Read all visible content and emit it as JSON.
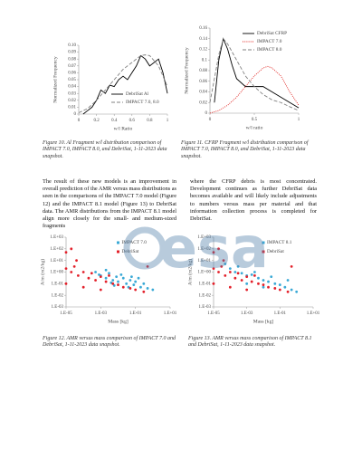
{
  "chart_data": [
    {
      "type": "line",
      "xlabel": "w/l Ratio",
      "ylabel": "Normalized Frequency",
      "caption": "Figure 10. Al Fragment w/l distribution comparison of IMPACT 7.0, IMPACT 8.0, and DebriSat, 1-11-2023 data snapshot.",
      "xlim": [
        0,
        1
      ],
      "xticks": [
        0,
        0.2,
        0.4,
        0.6,
        0.8,
        1
      ],
      "ylim": [
        0,
        0.1
      ],
      "yticks": [
        0,
        0.01,
        0.02,
        0.03,
        0.04,
        0.05,
        0.06,
        0.07,
        0.08,
        0.09,
        {
          "value": 0.1,
          "label": "0.10"
        }
      ],
      "legend": "lower right",
      "series": [
        {
          "name": "DebriSat Al",
          "color": "#000000",
          "dash": "solid",
          "x": [
            0.05,
            0.1,
            0.15,
            0.2,
            0.25,
            0.3,
            0.35,
            0.4,
            0.45,
            0.5,
            0.55,
            0.6,
            0.65,
            0.7,
            0.75,
            0.8,
            0.85,
            0.9,
            0.95,
            1
          ],
          "values": [
            0,
            0.005,
            0.01,
            0.02,
            0.035,
            0.03,
            0.042,
            0.04,
            0.05,
            0.055,
            0.05,
            0.06,
            0.07,
            0.085,
            0.08,
            0.07,
            0.075,
            0.08,
            0.06,
            0.03
          ]
        },
        {
          "name": "IMPACT 7.0, 8.0",
          "color": "#808080",
          "dash": "dashed",
          "x": [
            0,
            0.1,
            0.2,
            0.3,
            0.4,
            0.5,
            0.6,
            0.7,
            0.75,
            0.8,
            0.9,
            1
          ],
          "values": [
            0.002,
            0.008,
            0.02,
            0.035,
            0.05,
            0.065,
            0.075,
            0.085,
            0.086,
            0.085,
            0.07,
            0.04
          ]
        }
      ]
    },
    {
      "type": "line",
      "xlabel": "w/l ratio",
      "ylabel": "Normalized Frequency",
      "caption": "Figure 11. CFRP Fragment w/l distribution comparison of IMPACT 7.0, IMPACT 8.0, and DebriSat, 1-11-2023 data snapshot.",
      "xlim": [
        0,
        1
      ],
      "xticks": [
        0,
        0.5,
        1
      ],
      "ylim": [
        0,
        0.16
      ],
      "yticks": [
        0,
        0.02,
        0.04,
        0.06,
        0.08,
        0.1,
        0.12,
        0.14,
        0.16
      ],
      "legend": "upper right",
      "series": [
        {
          "name": "DebriSat CFRP",
          "color": "#000000",
          "dash": "solid",
          "x": [
            0.05,
            0.1,
            0.15,
            0.2,
            0.25,
            0.3,
            0.4,
            0.5,
            0.6,
            0.7,
            0.8,
            0.9,
            1
          ],
          "values": [
            0.02,
            0.1,
            0.14,
            0.12,
            0.09,
            0.065,
            0.05,
            0.05,
            0.05,
            0.04,
            0.03,
            0.02,
            0.01
          ]
        },
        {
          "name": "IMPACT 7.0",
          "color": "#e0201c",
          "dash": "dotted",
          "x": [
            0,
            0.1,
            0.2,
            0.3,
            0.4,
            0.5,
            0.6,
            0.65,
            0.7,
            0.8,
            0.9,
            1
          ],
          "values": [
            0,
            0.005,
            0.015,
            0.03,
            0.05,
            0.07,
            0.085,
            0.088,
            0.085,
            0.07,
            0.04,
            0.015
          ]
        },
        {
          "name": "IMPACT 8.0",
          "color": "#808080",
          "dash": "dashed",
          "x": [
            0,
            0.1,
            0.15,
            0.2,
            0.3,
            0.4,
            0.5,
            0.6,
            0.7,
            0.8,
            0.9,
            1
          ],
          "values": [
            0.02,
            0.11,
            0.14,
            0.13,
            0.1,
            0.07,
            0.05,
            0.035,
            0.025,
            0.02,
            0.012,
            0.005
          ]
        }
      ]
    },
    {
      "type": "scatter",
      "xlabel": "Mass [kg]",
      "ylabel": "A/m (m2/kg)",
      "caption": "Figure 12. AMR versus mass comparison of IMPACT 7.0 and DebriSat, 1-11-2023 data snapshot.",
      "xscale": "log",
      "yscale": "log",
      "xlim": [
        1e-05,
        10
      ],
      "xticks": [
        {
          "value": 1e-05,
          "label": "1.E-05"
        },
        {
          "value": 0.001,
          "label": "1.E-03"
        },
        {
          "value": 0.1,
          "label": "1.E-01"
        },
        {
          "value": 10,
          "label": "1.E+01"
        }
      ],
      "ylim": [
        0.001,
        1000
      ],
      "yticks": [
        {
          "value": 0.001,
          "label": "1.E-03"
        },
        {
          "value": 0.01,
          "label": "1.E-02"
        },
        {
          "value": 0.1,
          "label": "1.E-01"
        },
        {
          "value": 1,
          "label": "1.E+00"
        },
        {
          "value": 10,
          "label": "1.E+01"
        },
        {
          "value": 100,
          "label": "1.E+02"
        },
        {
          "value": 1000,
          "label": "1.E+03"
        }
      ],
      "legend": "upper right",
      "series": [
        {
          "name": "IMPACT 7.0",
          "color": "#3aa9d6",
          "x": [
            0.001,
            0.002,
            0.003,
            0.005,
            0.008,
            0.01,
            0.02,
            0.03,
            0.05,
            0.08,
            0.1,
            0.2,
            0.3,
            0.5,
            0.0005,
            0.0008,
            0.004,
            0.015,
            0.04,
            0.15,
            1,
            0.002,
            0.006,
            0.06
          ],
          "values": [
            0.5,
            0.3,
            0.8,
            0.2,
            0.4,
            0.15,
            0.3,
            0.1,
            0.2,
            0.08,
            0.15,
            0.05,
            0.1,
            0.04,
            1,
            0.6,
            0.12,
            0.6,
            0.05,
            0.3,
            0.03,
            1.5,
            0.07,
            0.4
          ]
        },
        {
          "name": "DebriSat",
          "color": "#e3202a",
          "x": [
            1e-05,
            2e-05,
            3e-05,
            5e-05,
            0.0001,
            0.0002,
            0.0003,
            0.0005,
            0.001,
            0.002,
            0.005,
            0.01,
            0.02,
            0.05,
            0.1,
            1e-05,
            2e-05,
            1e-05,
            0.0001,
            0.001,
            0.3,
            0.5,
            4e-05,
            0.003
          ],
          "values": [
            2,
            1,
            3,
            0.5,
            1,
            0.3,
            0.8,
            0.2,
            0.4,
            0.15,
            0.1,
            0.08,
            0.05,
            0.04,
            0.03,
            50,
            100,
            0.1,
            0.05,
            0.03,
            0.02,
            3,
            10,
            0.5
          ]
        }
      ]
    },
    {
      "type": "scatter",
      "xlabel": "Mass [kg]",
      "ylabel": "A/m (m2/kg)",
      "caption": "Figure 13. AMR versus mass comparison of IMPACT 8.1 and DebriSat, 1-11-2023 data snapshot.",
      "xscale": "log",
      "yscale": "log",
      "xlim": [
        1e-05,
        10
      ],
      "xticks": [
        {
          "value": 1e-05,
          "label": "1.E-05"
        },
        {
          "value": 0.001,
          "label": "1.E-03"
        },
        {
          "value": 0.1,
          "label": "1.E-01"
        },
        {
          "value": 10,
          "label": "1.E+01"
        }
      ],
      "ylim": [
        0.001,
        1000
      ],
      "yticks": [
        {
          "value": 0.001,
          "label": "1.E-03"
        },
        {
          "value": 0.01,
          "label": "1.E-02"
        },
        {
          "value": 0.1,
          "label": "1.E-01"
        },
        {
          "value": 1,
          "label": "1.E+00"
        },
        {
          "value": 10,
          "label": "1.E+01"
        },
        {
          "value": 100,
          "label": "1.E+02"
        },
        {
          "value": 1000,
          "label": "1.E+03"
        }
      ],
      "legend": "upper right",
      "series": [
        {
          "name": "IMPACT 8.1",
          "color": "#3aa9d6",
          "x": [
            0.0001,
            0.0002,
            0.0005,
            0.001,
            0.002,
            0.005,
            0.01,
            0.02,
            0.05,
            0.1,
            0.2,
            0.5,
            0.0003,
            0.003,
            0.03,
            0.001,
            0.01,
            5e-05,
            0.3,
            1
          ],
          "values": [
            2,
            1,
            0.8,
            0.5,
            0.6,
            0.3,
            0.2,
            0.15,
            0.1,
            0.08,
            0.05,
            0.03,
            3,
            1,
            0.4,
            0.1,
            0.05,
            5,
            0.2,
            0.02
          ]
        },
        {
          "name": "DebriSat",
          "color": "#e3202a",
          "x": [
            1e-05,
            2e-05,
            3e-05,
            5e-05,
            0.0001,
            0.0002,
            0.0003,
            0.0005,
            0.001,
            0.002,
            0.005,
            0.01,
            0.02,
            0.05,
            0.1,
            1e-05,
            2e-05,
            1e-05,
            0.0001,
            0.001,
            0.3,
            0.5,
            4e-05,
            0.003
          ],
          "values": [
            2,
            1,
            3,
            0.5,
            1,
            0.3,
            0.8,
            0.2,
            0.4,
            0.15,
            0.1,
            0.08,
            0.05,
            0.04,
            0.03,
            50,
            100,
            0.1,
            0.05,
            0.03,
            0.02,
            3,
            10,
            0.5
          ]
        }
      ]
    }
  ],
  "body": {
    "paragraphs": [
      "The result of these new models is an improvement in overall prediction of the AMR versus mass distributions as seen in the comparisons of the IMPACT 7.0 model (Figure 12) and the IMPACT 8.1 model (Figure 13) to DebriSat data. The AMR distributions from the IMPACT 8.1 model align more closely for the small- and medium-sized fragments",
      "where the CFRP debris is most concentrated. Development continues as further DebriSat data becomes available and will likely include adjustments to numbers versus mass per material and that information collection process is completed for DebriSat."
    ]
  },
  "watermark": "esa"
}
